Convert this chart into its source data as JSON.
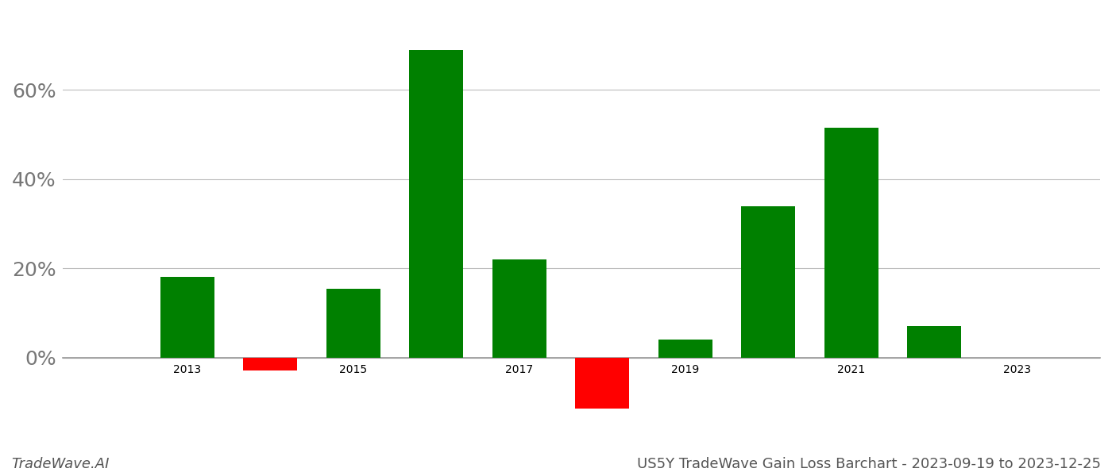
{
  "years": [
    2013,
    2014,
    2015,
    2016,
    2017,
    2018,
    2019,
    2020,
    2021,
    2022
  ],
  "values": [
    0.18,
    -0.03,
    0.155,
    0.69,
    0.22,
    -0.115,
    0.04,
    0.34,
    0.515,
    0.07
  ],
  "colors": [
    "#008000",
    "#ff0000",
    "#008000",
    "#008000",
    "#008000",
    "#ff0000",
    "#008000",
    "#008000",
    "#008000",
    "#008000"
  ],
  "footer_left": "TradeWave.AI",
  "footer_right": "US5Y TradeWave Gain Loss Barchart - 2023-09-19 to 2023-12-25",
  "background_color": "#ffffff",
  "grid_color": "#bbbbbb",
  "xlim": [
    2011.5,
    2024.0
  ],
  "ylim": [
    -0.175,
    0.775
  ],
  "xticks": [
    2013,
    2015,
    2017,
    2019,
    2021,
    2023
  ],
  "yticks": [
    0.0,
    0.2,
    0.4,
    0.6
  ],
  "ytick_labels": [
    "0%",
    "20%",
    "40%",
    "60%"
  ],
  "bar_width": 0.65,
  "tick_fontsize": 18,
  "footer_fontsize": 13
}
